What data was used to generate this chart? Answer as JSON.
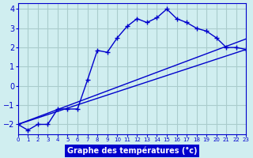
{
  "line1_x": [
    0,
    1,
    2,
    3,
    4,
    5,
    6,
    7,
    8,
    9,
    10,
    11,
    12,
    13,
    14,
    15,
    16,
    17,
    18,
    19,
    20,
    21,
    22,
    23
  ],
  "line1_y": [
    -2.0,
    -2.3,
    -2.0,
    -2.0,
    -1.2,
    -1.2,
    -1.2,
    0.3,
    1.85,
    1.75,
    2.5,
    3.1,
    3.5,
    3.3,
    3.55,
    4.0,
    3.5,
    3.3,
    3.0,
    2.85,
    2.5,
    2.0,
    2.0,
    1.9
  ],
  "line2_x": [
    0,
    23
  ],
  "line2_y": [
    -2.0,
    1.9
  ],
  "line3_x": [
    0,
    23
  ],
  "line3_y": [
    -2.0,
    2.45
  ],
  "line_color": "#0000cc",
  "bg_color": "#d0eef0",
  "grid_color": "#aacccc",
  "xlabel": "Graphe des températures (°c)",
  "xlabel_color": "#ffffff",
  "xlabel_bg": "#0000cc",
  "yticks": [
    -2,
    -1,
    0,
    1,
    2,
    3,
    4
  ],
  "xticks": [
    0,
    1,
    2,
    3,
    4,
    5,
    6,
    7,
    8,
    9,
    10,
    11,
    12,
    13,
    14,
    15,
    16,
    17,
    18,
    19,
    20,
    21,
    22,
    23
  ],
  "xlim": [
    0,
    23
  ],
  "ylim": [
    -2.5,
    4.3
  ]
}
